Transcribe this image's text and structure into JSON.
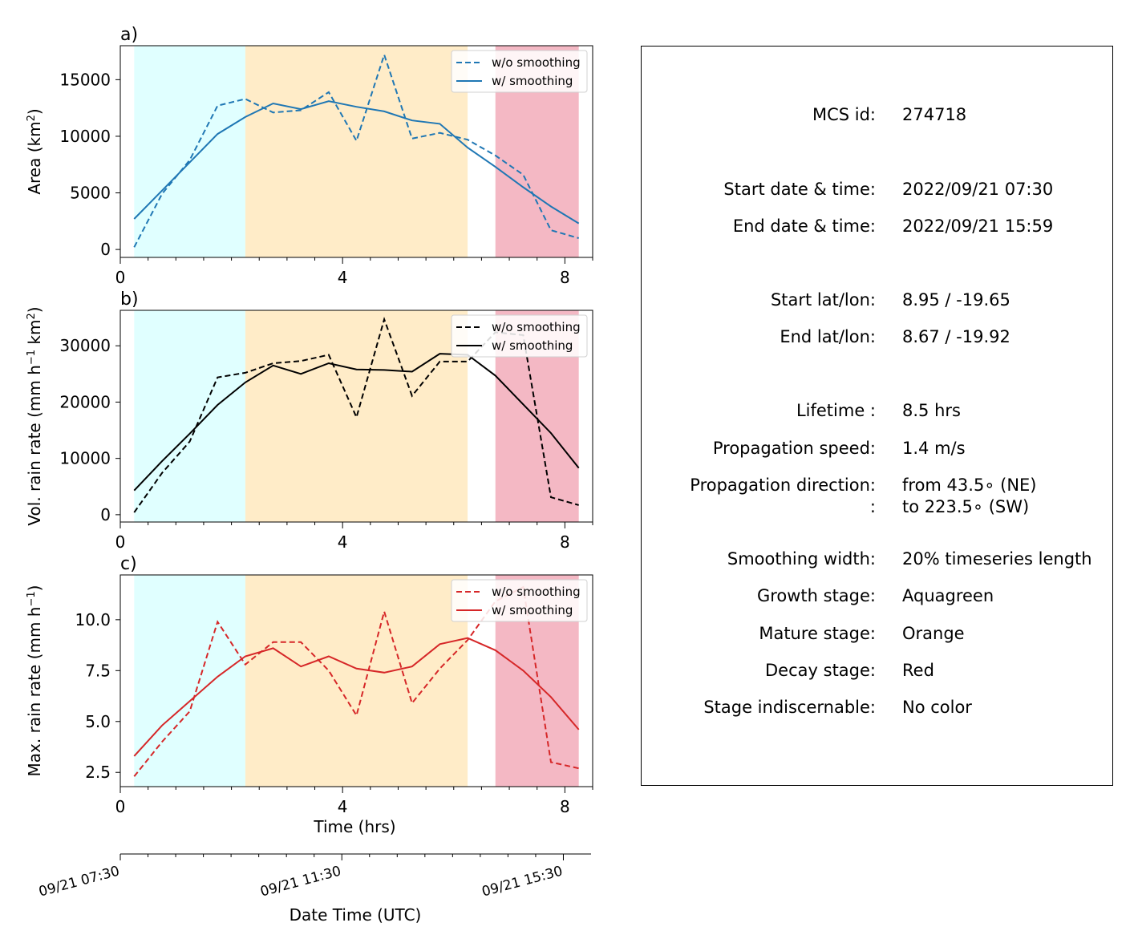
{
  "chart_data": [
    {
      "type": "line",
      "panel_label": "a)",
      "ylabel": "Area  (km$^2$)",
      "ylabel_parts": [
        "Area  (km",
        "2",
        ")"
      ],
      "xlabel": "",
      "xlim": [
        0,
        8.5
      ],
      "ylim": [
        -700,
        18000
      ],
      "yticks": [
        0,
        5000,
        10000,
        15000
      ],
      "xticks": [
        0,
        4,
        8
      ],
      "x": [
        0.25,
        0.75,
        1.25,
        1.75,
        2.25,
        2.75,
        3.25,
        3.75,
        4.25,
        4.75,
        5.25,
        5.75,
        6.25,
        6.75,
        7.25,
        7.75,
        8.25
      ],
      "series": [
        {
          "name": "w/o smoothing",
          "style": "dashed",
          "color": "#1f77b4",
          "values": [
            200,
            4900,
            7900,
            12700,
            13300,
            12100,
            12300,
            13900,
            9600,
            17200,
            9800,
            10300,
            9700,
            8300,
            6600,
            1700,
            1000
          ]
        },
        {
          "name": "w/ smoothing",
          "style": "solid",
          "color": "#1f77b4",
          "values": [
            2700,
            5200,
            7700,
            10200,
            11700,
            12900,
            12400,
            13100,
            12600,
            12200,
            11400,
            11100,
            9000,
            7300,
            5500,
            3800,
            2300
          ]
        }
      ]
    },
    {
      "type": "line",
      "panel_label": "b)",
      "ylabel_parts": [
        "Vol. rain rate (mm h",
        "−1",
        " km",
        "2",
        ")"
      ],
      "xlabel": "",
      "xlim": [
        0,
        8.5
      ],
      "ylim": [
        -1300,
        36300
      ],
      "yticks": [
        0,
        10000,
        20000,
        30000
      ],
      "xticks": [
        0,
        4,
        8
      ],
      "x": [
        0.25,
        0.75,
        1.25,
        1.75,
        2.25,
        2.75,
        3.25,
        3.75,
        4.25,
        4.75,
        5.25,
        5.75,
        6.25,
        6.75,
        7.25,
        7.75,
        8.25
      ],
      "series": [
        {
          "name": "w/o smoothing",
          "style": "dashed",
          "color": "#000000",
          "values": [
            400,
            7400,
            13000,
            24400,
            25200,
            26900,
            27300,
            28400,
            17300,
            34700,
            21100,
            27200,
            27200,
            32400,
            31900,
            3100,
            1700
          ]
        },
        {
          "name": "w/ smoothing",
          "style": "solid",
          "color": "#000000",
          "values": [
            4300,
            9500,
            14400,
            19500,
            23500,
            26500,
            25000,
            26900,
            25800,
            25700,
            25400,
            28600,
            28400,
            24700,
            19600,
            14500,
            8300
          ]
        }
      ]
    },
    {
      "type": "line",
      "panel_label": "c)",
      "ylabel_parts": [
        "Max. rain rate  (mm h",
        "−1",
        ")"
      ],
      "xlabel": "Time (hrs)",
      "xlim": [
        0,
        8.5
      ],
      "ylim": [
        1.8,
        12.2
      ],
      "yticks": [
        2.5,
        5.0,
        7.5,
        10.0
      ],
      "ytick_labels": [
        "2.5",
        "5.0",
        "7.5",
        "10.0"
      ],
      "xticks": [
        0,
        4,
        8
      ],
      "x": [
        0.25,
        0.75,
        1.25,
        1.75,
        2.25,
        2.75,
        3.25,
        3.75,
        4.25,
        4.75,
        5.25,
        5.75,
        6.25,
        6.75,
        7.25,
        7.75,
        8.25
      ],
      "series": [
        {
          "name": "w/o smoothing",
          "style": "dashed",
          "color": "#d62728",
          "values": [
            2.3,
            4.0,
            5.5,
            9.9,
            7.8,
            8.9,
            8.9,
            7.5,
            5.3,
            10.4,
            5.9,
            7.6,
            9.0,
            10.9,
            11.6,
            3.0,
            2.7
          ]
        },
        {
          "name": "w/ smoothing",
          "style": "solid",
          "color": "#d62728",
          "values": [
            3.3,
            4.8,
            6.0,
            7.2,
            8.2,
            8.6,
            7.7,
            8.2,
            7.6,
            7.4,
            7.7,
            8.8,
            9.1,
            8.5,
            7.5,
            6.2,
            4.6
          ]
        }
      ]
    }
  ],
  "stage_bands": [
    {
      "name": "growth",
      "from": 0.25,
      "to": 2.25,
      "color": "#e0ffff"
    },
    {
      "name": "mature",
      "from": 2.25,
      "to": 6.25,
      "color": "#ffecc8"
    },
    {
      "name": "decay",
      "from": 6.75,
      "to": 8.25,
      "color": "#f4b8c4"
    }
  ],
  "legend": {
    "placement": "upper right",
    "labels": [
      "w/o smoothing",
      "w/ smoothing"
    ]
  },
  "datetime_axis": {
    "xlabel": "Date Time (UTC)",
    "tick_labels": [
      "09/21 07:30",
      "09/21 11:30",
      "09/21 15:30"
    ],
    "tick_hours": [
      0,
      4,
      8
    ],
    "xlim": [
      0,
      8.5
    ]
  },
  "info": {
    "rows": [
      {
        "label": "MCS id:",
        "value": "274718"
      },
      {
        "label": "Start date & time:",
        "value": "2022/09/21 07:30"
      },
      {
        "label": "End date & time:",
        "value": "2022/09/21 15:59"
      },
      {
        "label": "Start lat/lon:",
        "value": "8.95 / -19.65"
      },
      {
        "label": "End lat/lon:",
        "value": "8.67 / -19.92"
      },
      {
        "label": "Lifetime :",
        "value": "8.5 hrs"
      },
      {
        "label": "Propagation speed:",
        "value": "1.4 m/s"
      },
      {
        "label": "Propagation direction:",
        "value": "from  43.5∘ (NE)"
      },
      {
        "label": ":",
        "value": "to   223.5∘ (SW)"
      },
      {
        "label": "Smoothing width:",
        "value": "20% timeseries length"
      },
      {
        "label": "Growth stage:",
        "value": "Aquagreen"
      },
      {
        "label": "Mature stage:",
        "value": "Orange"
      },
      {
        "label": "Decay stage:",
        "value": "Red"
      },
      {
        "label": "Stage indiscernable:",
        "value": "No color"
      }
    ]
  }
}
